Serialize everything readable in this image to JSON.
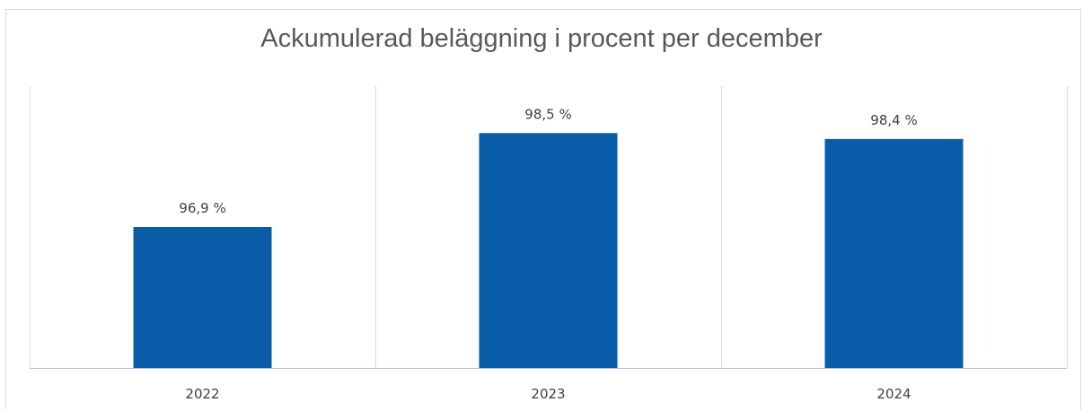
{
  "chart_data": {
    "type": "bar",
    "title": "Ackumulerad beläggning i procent per december",
    "categories": [
      "2022",
      "2023",
      "2024"
    ],
    "values": [
      96.9,
      98.5,
      98.4
    ],
    "data_labels": [
      "96,9 %",
      "98,5 %",
      "98,4 %"
    ],
    "xlabel": "",
    "ylabel": "",
    "ylim": [
      94.5,
      99.3
    ],
    "grid": "vertical category separators",
    "legend": "none",
    "bar_color": "#095ca7"
  }
}
